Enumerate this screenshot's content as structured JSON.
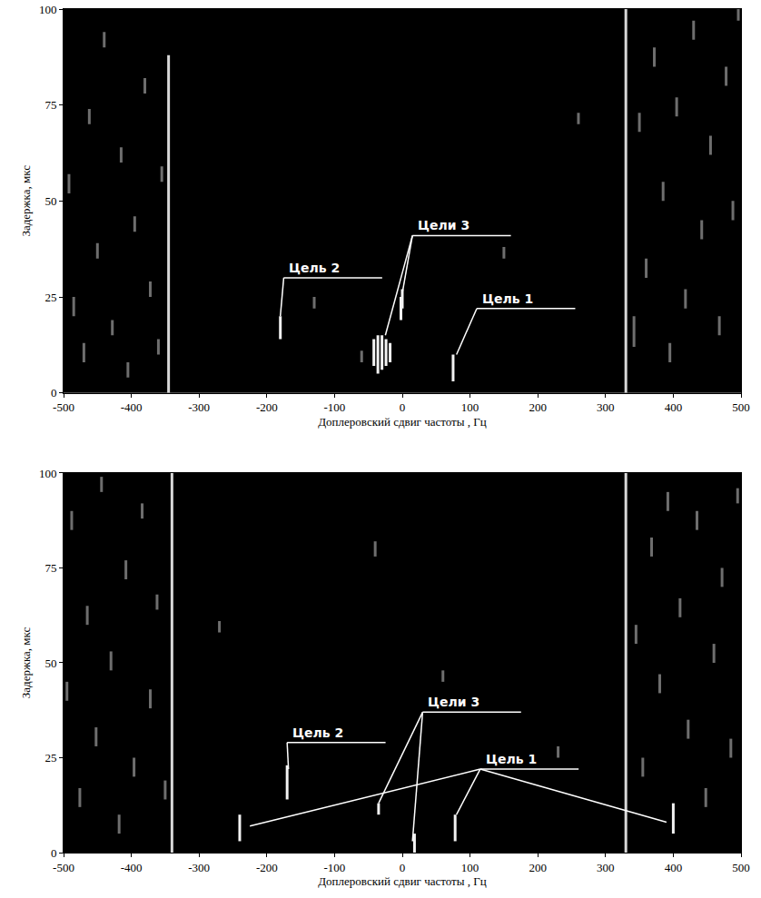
{
  "chart_data": [
    {
      "type": "scatter",
      "x_label": "Доплеровский сдвиг частоты , Гц",
      "y_label": "Задержка, мкс",
      "xlim": [
        -500,
        500
      ],
      "xticks": [
        -500,
        -400,
        -300,
        -200,
        -100,
        0,
        100,
        200,
        300,
        400,
        500
      ],
      "ylim": [
        0,
        100
      ],
      "yticks": [
        0,
        25,
        50,
        75,
        100
      ],
      "grid": false,
      "series": [
        {
          "color": "#6e6e6e",
          "x": [
            -492,
            -485,
            -470,
            -462,
            -450,
            -440,
            -428,
            -415,
            -405,
            -395,
            -380,
            -372,
            -360,
            -355,
            342,
            350,
            360,
            372,
            385,
            395,
            405,
            418,
            430,
            442,
            455,
            468,
            478,
            488,
            496,
            -130,
            -60,
            150,
            260
          ],
          "y_from": [
            52,
            20,
            8,
            70,
            35,
            90,
            15,
            60,
            4,
            42,
            78,
            25,
            10,
            55,
            12,
            68,
            30,
            85,
            50,
            8,
            72,
            22,
            92,
            40,
            62,
            15,
            80,
            45,
            97,
            22,
            8,
            35,
            70
          ],
          "y_to": [
            57,
            25,
            13,
            74,
            39,
            94,
            19,
            64,
            8,
            46,
            82,
            29,
            14,
            59,
            20,
            73,
            35,
            90,
            55,
            13,
            77,
            27,
            97,
            45,
            67,
            20,
            85,
            50,
            100,
            25,
            11,
            38,
            73
          ]
        },
        {
          "color": "#d8d8d8",
          "x": [
            -345,
            330
          ],
          "y_from": [
            0,
            0
          ],
          "y_to": [
            88,
            100
          ]
        },
        {
          "color": "#f2f2f2",
          "x": [
            -180,
            -42,
            -36,
            -30,
            -24,
            -18,
            -2,
            0,
            75
          ],
          "y_from": [
            14,
            7,
            5,
            6,
            7,
            8,
            19,
            22,
            3
          ],
          "y_to": [
            20,
            14,
            15,
            15,
            14,
            13,
            25,
            27,
            10
          ]
        }
      ],
      "annotations": [
        {
          "text": "Цель 2",
          "x": -175,
          "y": 30,
          "targets": [
            [
              -180,
              20
            ]
          ]
        },
        {
          "text": "Цели 3",
          "x": 15,
          "y": 41,
          "targets": [
            [
              -25,
              15
            ],
            [
              0,
              26
            ]
          ]
        },
        {
          "text": "Цель 1",
          "x": 110,
          "y": 22,
          "targets": [
            [
              80,
              10
            ]
          ]
        }
      ]
    },
    {
      "type": "scatter",
      "x_label": "Доплеровский сдвиг частоты , Гц",
      "y_label": "Задержка, мкс",
      "xlim": [
        -500,
        500
      ],
      "xticks": [
        -500,
        -400,
        -300,
        -200,
        -100,
        0,
        100,
        200,
        300,
        400,
        500
      ],
      "ylim": [
        0,
        100
      ],
      "yticks": [
        0,
        25,
        50,
        75,
        100
      ],
      "grid": false,
      "series": [
        {
          "color": "#6e6e6e",
          "x": [
            -495,
            -488,
            -476,
            -465,
            -452,
            -444,
            -430,
            -418,
            -408,
            -396,
            -384,
            -372,
            -362,
            -350,
            345,
            355,
            368,
            380,
            392,
            410,
            422,
            435,
            448,
            460,
            472,
            485,
            495,
            -40,
            -270,
            60,
            230
          ],
          "y_from": [
            40,
            85,
            12,
            60,
            28,
            95,
            48,
            5,
            72,
            20,
            88,
            38,
            64,
            14,
            55,
            20,
            78,
            42,
            90,
            62,
            30,
            85,
            12,
            50,
            70,
            25,
            92,
            78,
            58,
            45,
            25
          ],
          "y_to": [
            45,
            90,
            17,
            65,
            33,
            99,
            53,
            10,
            77,
            25,
            92,
            43,
            68,
            19,
            60,
            25,
            83,
            47,
            95,
            67,
            35,
            90,
            17,
            55,
            75,
            30,
            96,
            82,
            61,
            48,
            28
          ]
        },
        {
          "color": "#d8d8d8",
          "x": [
            -340,
            330
          ],
          "y_from": [
            0,
            0
          ],
          "y_to": [
            100,
            100
          ]
        },
        {
          "color": "#f2f2f2",
          "x": [
            -170,
            -240,
            78,
            400,
            18,
            -35
          ],
          "y_from": [
            14,
            3,
            3,
            5,
            0,
            10
          ],
          "y_to": [
            23,
            10,
            10,
            13,
            5,
            13
          ]
        }
      ],
      "annotations": [
        {
          "text": "Цель 2",
          "x": -170,
          "y": 29,
          "targets": [
            [
              -168,
              22
            ]
          ]
        },
        {
          "text": "Цели 3",
          "x": 30,
          "y": 37,
          "targets": [
            [
              -35,
              13
            ],
            [
              15,
              3
            ]
          ]
        },
        {
          "text": "Цель 1",
          "x": 115,
          "y": 22,
          "targets": [
            [
              -225,
              7
            ],
            [
              80,
              10
            ],
            [
              390,
              8
            ]
          ]
        }
      ]
    }
  ]
}
